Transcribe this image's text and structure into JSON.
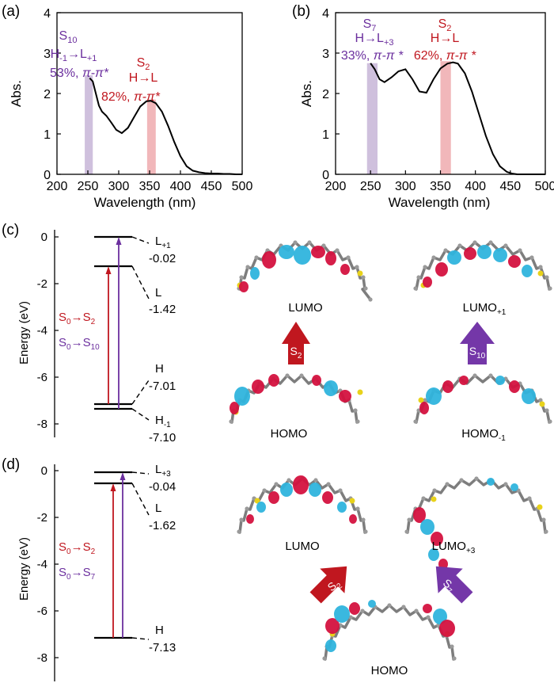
{
  "colors": {
    "purple": "#6b2f9e",
    "red": "#c0171f",
    "purple_band": "#cfc0dd",
    "red_band": "#f1b7ba",
    "orbital_red": "#d4123f",
    "orbital_blue": "#2fb4dd",
    "atom_carbon": "#8a8a8a",
    "atom_sulfur": "#e8d21a"
  },
  "panel_a": {
    "label": "(a)",
    "ylabel": "Abs.",
    "xlabel": "Wavelength (nm)",
    "xticks": [
      "200",
      "250",
      "300",
      "350",
      "400",
      "450",
      "500"
    ],
    "yticks": [
      "0",
      "1",
      "2",
      "3",
      "4"
    ],
    "ann_purple": {
      "state": "S",
      "state_sub": "10",
      "t1a": "H",
      "t1a_sub": "-1",
      "t1b": "→L",
      "t1b_sub": "+1",
      "pct": "53%, ",
      "pp": "π-π*"
    },
    "ann_red": {
      "state": "S",
      "state_sub": "2",
      "t1": "H→L",
      "pct": "82%, ",
      "pp": "π-π*"
    }
  },
  "panel_b": {
    "label": "(b)",
    "ylabel": "Abs.",
    "xlabel": "Wavelength (nm)",
    "xticks": [
      "200",
      "250",
      "300",
      "350",
      "400",
      "450",
      "500"
    ],
    "yticks": [
      "0",
      "1",
      "2",
      "3",
      "4"
    ],
    "ann_purple": {
      "state": "S",
      "state_sub": "7",
      "t1": "H→L",
      "t1_sub": "+3",
      "pct": "33%, ",
      "pp": "π-π *"
    },
    "ann_red": {
      "state": "S",
      "state_sub": "2",
      "t1": "H→L",
      "pct": "62%, ",
      "pp": "π-π *"
    }
  },
  "panel_c": {
    "label": "(c)",
    "ylabel": "Energy (eV)",
    "yticks": [
      "0",
      "-2",
      "-4",
      "-6",
      "-8"
    ],
    "levels": [
      {
        "name": "L",
        "sub": "+1",
        "value": "-0.02"
      },
      {
        "name": "L",
        "sub": "",
        "value": "-1.42"
      },
      {
        "name": "H",
        "sub": "",
        "value": "-7.01"
      },
      {
        "name": "H",
        "sub": "-1",
        "value": "-7.10"
      }
    ],
    "trans_red": {
      "a": "S",
      "a_sub": "0",
      "arrow": "→S",
      "b_sub": "2"
    },
    "trans_purple": {
      "a": "S",
      "a_sub": "0",
      "arrow": "→S",
      "b_sub": "10"
    },
    "orbitals": {
      "lumo": "LUMO",
      "lumo1": "LUMO",
      "lumo1_sub": "+1",
      "homo": "HOMO",
      "homo1": "HOMO",
      "homo1_sub": "-1"
    },
    "arrow_red": {
      "t": "S",
      "sub": "2"
    },
    "arrow_purple": {
      "t": "S",
      "sub": "10"
    }
  },
  "panel_d": {
    "label": "(d)",
    "ylabel": "Energy (eV)",
    "yticks": [
      "0",
      "-2",
      "-4",
      "-6",
      "-8"
    ],
    "levels": [
      {
        "name": "L",
        "sub": "+3",
        "value": "-0.04"
      },
      {
        "name": "L",
        "sub": "",
        "value": "-1.62"
      },
      {
        "name": "H",
        "sub": "",
        "value": "-7.13"
      }
    ],
    "trans_red": {
      "a": "S",
      "a_sub": "0",
      "arrow": "→S",
      "b_sub": "2"
    },
    "trans_purple": {
      "a": "S",
      "a_sub": "0",
      "arrow": "→S",
      "b_sub": "7"
    },
    "orbitals": {
      "lumo": "LUMO",
      "lumo3": "LUMO",
      "lumo3_sub": "+3",
      "homo": "HOMO"
    },
    "arrow_red": {
      "t": "S",
      "sub": "2"
    },
    "arrow_purple": {
      "t": "S",
      "sub": "7"
    }
  },
  "chart_data": [
    {
      "type": "line",
      "panel": "(a)",
      "xlabel": "Wavelength (nm)",
      "ylabel": "Abs.",
      "xlim": [
        200,
        500
      ],
      "ylim": [
        0,
        4
      ],
      "x": [
        253,
        258,
        263,
        268,
        273,
        280,
        288,
        296,
        305,
        315,
        325,
        335,
        345,
        352,
        360,
        370,
        380,
        390,
        400,
        410,
        420,
        430,
        440,
        450,
        460,
        470,
        480,
        490,
        500
      ],
      "y": [
        2.38,
        2.3,
        2.0,
        1.7,
        1.55,
        1.45,
        1.28,
        1.1,
        1.02,
        1.15,
        1.42,
        1.68,
        1.81,
        1.82,
        1.76,
        1.55,
        1.2,
        0.8,
        0.45,
        0.2,
        0.09,
        0.05,
        0.03,
        0.02,
        0.02,
        0.01,
        0.01,
        0.0,
        0.0
      ],
      "bands": [
        {
          "x_range": [
            245,
            258
          ],
          "label": "S10 H-1→L+1 53%, π-π*"
        },
        {
          "x_range": [
            346,
            360
          ],
          "label": "S2 H→L 82%, π-π*"
        }
      ]
    },
    {
      "type": "line",
      "panel": "(b)",
      "xlabel": "Wavelength (nm)",
      "ylabel": "Abs.",
      "xlim": [
        200,
        500
      ],
      "ylim": [
        0,
        4
      ],
      "x": [
        250,
        256,
        263,
        270,
        280,
        290,
        300,
        310,
        320,
        330,
        340,
        350,
        360,
        368,
        375,
        385,
        395,
        405,
        415,
        425,
        435,
        445,
        452,
        460,
        480,
        500
      ],
      "y": [
        2.75,
        2.6,
        2.35,
        2.28,
        2.4,
        2.55,
        2.6,
        2.35,
        2.05,
        2.02,
        2.35,
        2.62,
        2.74,
        2.77,
        2.74,
        2.5,
        2.05,
        1.5,
        0.95,
        0.5,
        0.2,
        0.06,
        0.02,
        0.0,
        0.0,
        0.0
      ],
      "bands": [
        {
          "x_range": [
            245,
            260
          ],
          "label": "S7 H→L+3 33%, π-π *"
        },
        {
          "x_range": [
            350,
            365
          ],
          "label": "S2 H→L 62%, π-π *"
        }
      ]
    }
  ]
}
